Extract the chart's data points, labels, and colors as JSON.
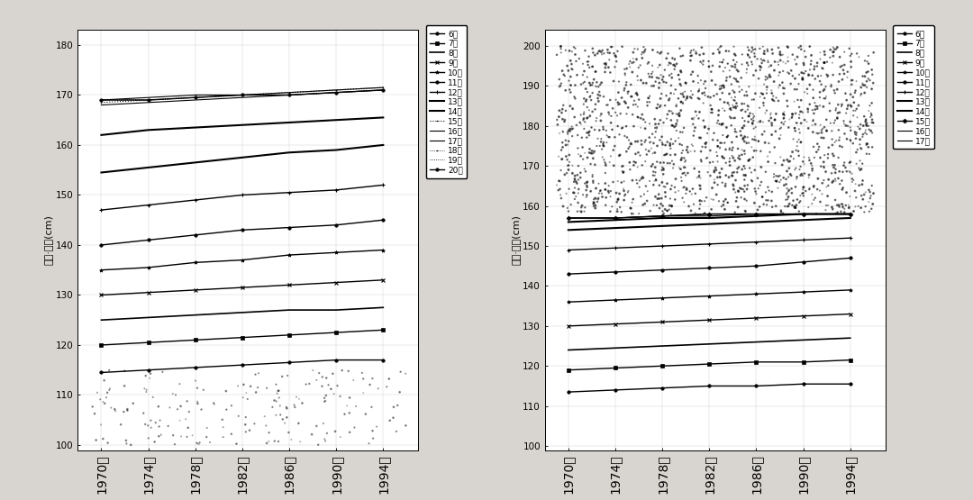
{
  "years": [
    1970,
    1974,
    1978,
    1982,
    1986,
    1990,
    1994
  ],
  "male_data": {
    "6": [
      114.5,
      115,
      115.5,
      116,
      116.5,
      117,
      117
    ],
    "7": [
      120,
      120.5,
      121,
      121.5,
      122,
      122.5,
      123
    ],
    "8": [
      125,
      125.5,
      126,
      126.5,
      127,
      127,
      127.5
    ],
    "9": [
      130,
      130.5,
      131,
      131.5,
      132,
      132.5,
      133
    ],
    "10": [
      135,
      135.5,
      136.5,
      137,
      138,
      138.5,
      139
    ],
    "11": [
      140,
      141,
      142,
      143,
      143.5,
      144,
      145
    ],
    "12": [
      147,
      148,
      149,
      150,
      150.5,
      151,
      152
    ],
    "13": [
      154.5,
      155.5,
      156.5,
      157.5,
      158.5,
      159,
      160
    ],
    "14": [
      162,
      163,
      163.5,
      164,
      164.5,
      165,
      165.5
    ],
    "15": [
      168.5,
      169,
      169.5,
      170,
      170.5,
      171,
      171.5
    ],
    "16": [
      168,
      168.5,
      169,
      169.5,
      170,
      170.5,
      171
    ],
    "17": [
      169,
      169.5,
      170,
      170,
      170.5,
      171,
      171.5
    ],
    "18": [
      169,
      169,
      169.5,
      170,
      170,
      170.5,
      171
    ],
    "19": [
      169,
      169,
      169.5,
      170,
      170,
      170.5,
      171
    ],
    "20": [
      169,
      169,
      169.5,
      170,
      170,
      170.5,
      171
    ]
  },
  "female_data": {
    "6": [
      113.5,
      114,
      114.5,
      115,
      115,
      115.5,
      115.5
    ],
    "7": [
      119,
      119.5,
      120,
      120.5,
      121,
      121,
      121.5
    ],
    "8": [
      124,
      124.5,
      125,
      125.5,
      126,
      126.5,
      127
    ],
    "9": [
      130,
      130.5,
      131,
      131.5,
      132,
      132.5,
      133
    ],
    "10": [
      136,
      136.5,
      137,
      137.5,
      138,
      138.5,
      139
    ],
    "11": [
      143,
      143.5,
      144,
      144.5,
      145,
      146,
      147
    ],
    "12": [
      149,
      149.5,
      150,
      150.5,
      151,
      151.5,
      152
    ],
    "13": [
      154,
      154.5,
      155,
      155.5,
      156,
      156.5,
      157
    ],
    "14": [
      156,
      156.5,
      157,
      157,
      157.5,
      158,
      158
    ],
    "15": [
      157,
      157,
      157.5,
      158,
      158,
      158,
      158
    ],
    "16": [
      157,
      157,
      157.5,
      157.5,
      158,
      158,
      158
    ],
    "17": [
      157,
      157,
      157.5,
      158,
      158,
      158,
      158
    ]
  },
  "male_yticks": [
    100,
    110,
    120,
    130,
    140,
    150,
    160,
    170,
    180
  ],
  "female_yticks": [
    100,
    110,
    120,
    130,
    140,
    150,
    160,
    170,
    180,
    190,
    200
  ],
  "male_ylim": [
    99,
    183
  ],
  "female_ylim": [
    99,
    204
  ],
  "xtick_labels": [
    "1970年",
    "1974年",
    "1978年",
    "1982年",
    "1986年",
    "1990年",
    "1994年"
  ],
  "male_ylabel": "身高·男子(cm)",
  "female_ylabel": "身高·女子(cm)",
  "male_legend_labels": [
    "6歳",
    "7歳",
    "8歳",
    "9歳",
    "10歳",
    "11歳",
    "12歳",
    "13歳",
    "14歳",
    "15歳",
    "16歳",
    "17歳",
    "18歳",
    "19歳",
    "20歳"
  ],
  "female_legend_labels": [
    "6歳",
    "7歳",
    "8歳",
    "9歳",
    "10歳",
    "11歳",
    "12歳",
    "13歳",
    "14歳",
    "15歳",
    "16歳",
    "17歳"
  ],
  "bg_color": "#ffffff",
  "paper_bg": "#d8d5d0"
}
